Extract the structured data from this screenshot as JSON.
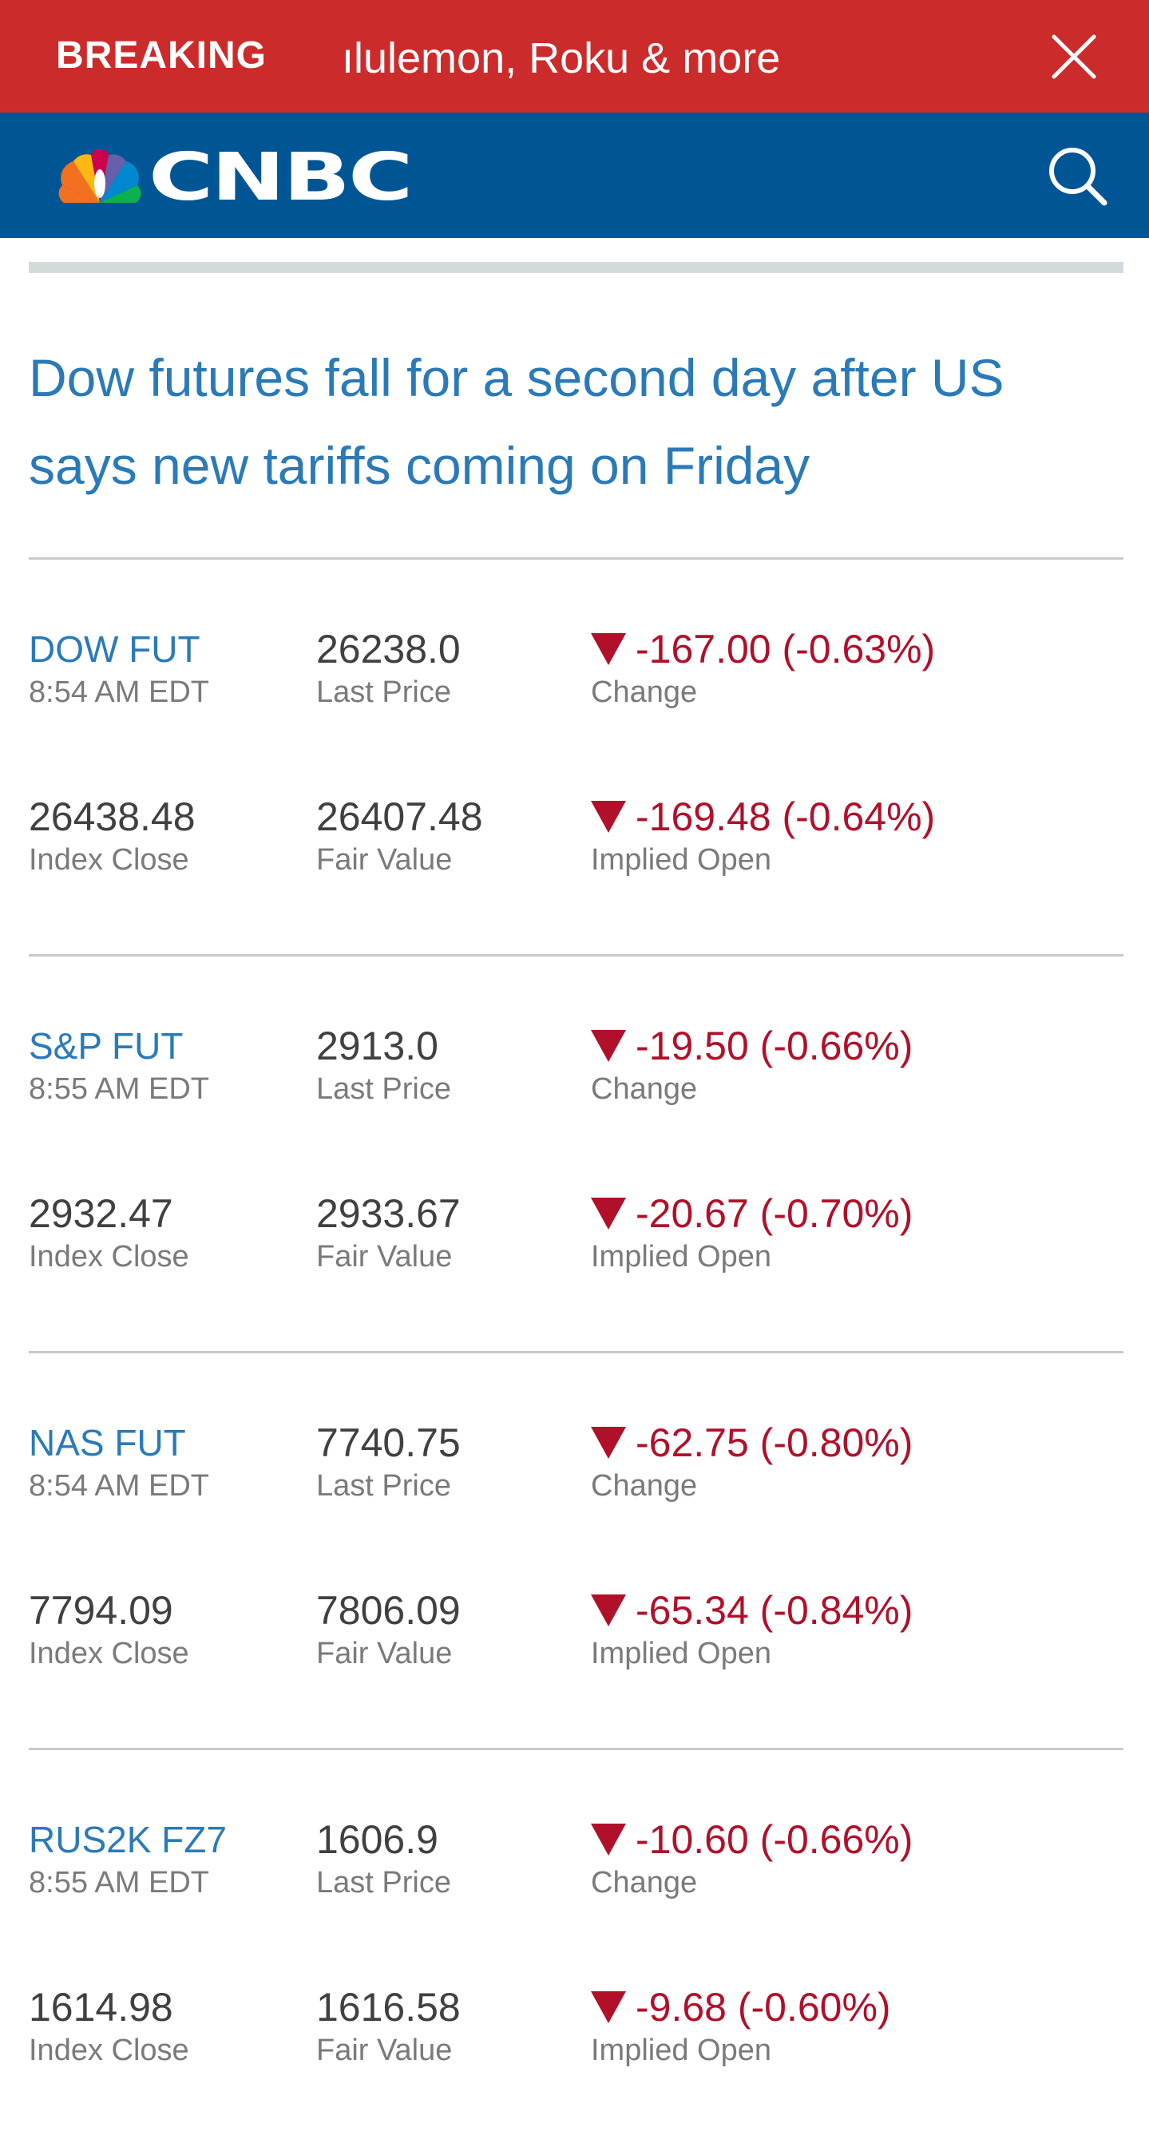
{
  "breaking": {
    "label": "BREAKING",
    "ticker": "ılulemon, Roku & more"
  },
  "header": {
    "logo_text": "CNBC"
  },
  "article": {
    "headline": "Dow futures fall for a second day after US says new tariffs coming on Friday"
  },
  "labels": {
    "last_price": "Last Price",
    "change": "Change",
    "index_close": "Index Close",
    "fair_value": "Fair Value",
    "implied_open": "Implied Open"
  },
  "quotes": [
    {
      "symbol": "DOW FUT",
      "time": "8:54 AM EDT",
      "last_price": "26238.0",
      "change": "-167.00 (-0.63%)",
      "index_close": "26438.48",
      "fair_value": "26407.48",
      "implied_open": "-169.48 (-0.64%)"
    },
    {
      "symbol": "S&P FUT",
      "time": "8:55 AM EDT",
      "last_price": "2913.0",
      "change": "-19.50 (-0.66%)",
      "index_close": "2932.47",
      "fair_value": "2933.67",
      "implied_open": "-20.67 (-0.70%)"
    },
    {
      "symbol": "NAS FUT",
      "time": "8:54 AM EDT",
      "last_price": "7740.75",
      "change": "-62.75 (-0.80%)",
      "index_close": "7794.09",
      "fair_value": "7806.09",
      "implied_open": "-65.34 (-0.84%)"
    },
    {
      "symbol": "RUS2K FZ7",
      "time": "8:55 AM EDT",
      "last_price": "1606.9",
      "change": "-10.60 (-0.66%)",
      "index_close": "1614.98",
      "fair_value": "1616.58",
      "implied_open": "-9.68 (-0.60%)"
    }
  ],
  "colors": {
    "breaking_bg": "#cc2b2b",
    "header_bg": "#005594",
    "link_blue": "#2a7ab8",
    "negative_red": "#b0102a"
  },
  "icons": {
    "close": "close-icon",
    "search": "search-icon",
    "down": "triangle-down-icon"
  }
}
